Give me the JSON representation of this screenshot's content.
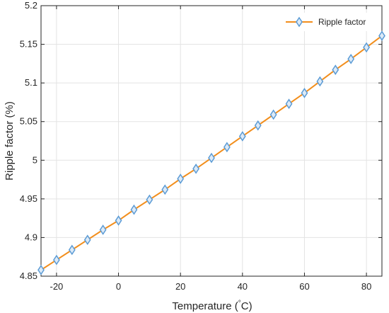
{
  "chart_data": {
    "type": "line",
    "xlabel": "Temperature (",
    "xlabel_unit_deg": "°",
    "xlabel_unit_tail": "C)",
    "ylabel": "Ripple factor (%)",
    "xlim": [
      -25,
      85
    ],
    "ylim": [
      4.85,
      5.2
    ],
    "x_ticks": [
      -20,
      0,
      20,
      40,
      60,
      80
    ],
    "y_ticks": [
      4.85,
      4.9,
      4.95,
      5,
      5.05,
      5.1,
      5.15,
      5.2
    ],
    "y_tick_labels": [
      "4.85",
      "4.9",
      "4.95",
      "5",
      "5.05",
      "5.1",
      "5.15",
      "5.2"
    ],
    "grid": true,
    "legend_position": "top-right",
    "series": [
      {
        "name": "Ripple factor",
        "line_color": "#f28e1c",
        "marker": "diamond",
        "marker_color": "#5b9bd5",
        "x": [
          -25,
          -20,
          -15,
          -10,
          -5,
          0,
          5,
          10,
          15,
          20,
          25,
          30,
          35,
          40,
          45,
          50,
          55,
          60,
          65,
          70,
          75,
          80,
          85
        ],
        "y": [
          4.858,
          4.871,
          4.884,
          4.897,
          4.91,
          4.922,
          4.936,
          4.949,
          4.962,
          4.976,
          4.989,
          5.003,
          5.017,
          5.031,
          5.045,
          5.059,
          5.073,
          5.087,
          5.102,
          5.117,
          5.131,
          5.146,
          5.161
        ]
      }
    ]
  }
}
